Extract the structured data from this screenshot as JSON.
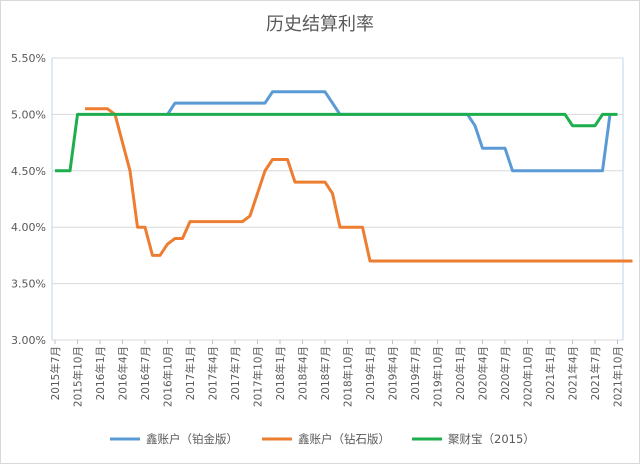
{
  "chart_data": {
    "type": "line",
    "title": "历史结算利率",
    "xlabel": "",
    "ylabel": "",
    "ylim": [
      3.0,
      5.5
    ],
    "yticks": [
      "3.00%",
      "3.50%",
      "4.00%",
      "4.50%",
      "5.00%",
      "5.50%"
    ],
    "ytick_values": [
      3.0,
      3.5,
      4.0,
      4.5,
      5.0,
      5.5
    ],
    "grid": "horizontal",
    "legend_position": "bottom",
    "x_start": "2015年7月",
    "x_end": "2021年10月",
    "x_step": "monthly",
    "xticks": [
      "2015年7月",
      "2015年10月",
      "2016年1月",
      "2016年4月",
      "2016年7月",
      "2016年10月",
      "2017年1月",
      "2017年4月",
      "2017年7月",
      "2017年10月",
      "2018年1月",
      "2018年4月",
      "2018年7月",
      "2018年10月",
      "2019年1月",
      "2019年4月",
      "2019年7月",
      "2019年10月",
      "2020年1月",
      "2020年4月",
      "2020年7月",
      "2020年10月",
      "2021年1月",
      "2021年4月",
      "2021年7月",
      "2021年10月"
    ],
    "series": [
      {
        "name": "鑫账户（铂金版）",
        "color": "#5B9BD5",
        "values": [
          null,
          null,
          null,
          null,
          null,
          null,
          null,
          null,
          null,
          null,
          null,
          null,
          null,
          null,
          null,
          5.0,
          5.1,
          5.1,
          5.1,
          5.1,
          5.1,
          5.1,
          5.1,
          5.1,
          5.1,
          5.1,
          5.1,
          5.1,
          5.1,
          5.2,
          5.2,
          5.2,
          5.2,
          5.2,
          5.2,
          5.2,
          5.2,
          5.1,
          5.0,
          5.0,
          5.0,
          5.0,
          5.0,
          5.0,
          5.0,
          5.0,
          5.0,
          5.0,
          5.0,
          5.0,
          5.0,
          5.0,
          5.0,
          5.0,
          5.0,
          5.0,
          4.9,
          4.7,
          4.7,
          4.7,
          4.7,
          4.5,
          4.5,
          4.5,
          4.5,
          4.5,
          4.5,
          4.5,
          4.5,
          4.5,
          4.5,
          4.5,
          4.5,
          4.5,
          5.0,
          null
        ]
      },
      {
        "name": "鑫账户（钻石版）",
        "color": "#ED7D31",
        "values": [
          null,
          null,
          null,
          null,
          5.05,
          5.05,
          5.05,
          5.05,
          5.0,
          4.75,
          4.5,
          4.0,
          4.0,
          3.75,
          3.75,
          3.85,
          3.9,
          3.9,
          4.05,
          4.05,
          4.05,
          4.05,
          4.05,
          4.05,
          4.05,
          4.05,
          4.1,
          4.3,
          4.5,
          4.6,
          4.6,
          4.6,
          4.4,
          4.4,
          4.4,
          4.4,
          4.4,
          4.3,
          4.0,
          4.0,
          4.0,
          4.0,
          3.7,
          3.7,
          3.7,
          3.7,
          3.7,
          3.7,
          3.7,
          3.7,
          3.7,
          3.7,
          3.7,
          3.7,
          3.7,
          3.7,
          3.7,
          3.7,
          3.7,
          3.7,
          3.7,
          3.7,
          3.7,
          3.7,
          3.7,
          3.7,
          3.7,
          3.7,
          3.7,
          3.7,
          3.7,
          3.7,
          3.7,
          3.7,
          3.7,
          3.7,
          3.7,
          3.7
        ]
      },
      {
        "name": "聚财宝（2015）",
        "color": "#1DAE4D",
        "values": [
          4.5,
          4.5,
          4.5,
          5.0,
          5.0,
          5.0,
          5.0,
          5.0,
          5.0,
          5.0,
          5.0,
          5.0,
          5.0,
          5.0,
          5.0,
          5.0,
          5.0,
          5.0,
          5.0,
          5.0,
          5.0,
          5.0,
          5.0,
          5.0,
          5.0,
          5.0,
          5.0,
          5.0,
          5.0,
          5.0,
          5.0,
          5.0,
          5.0,
          5.0,
          5.0,
          5.0,
          5.0,
          5.0,
          5.0,
          5.0,
          5.0,
          5.0,
          5.0,
          5.0,
          5.0,
          5.0,
          5.0,
          5.0,
          5.0,
          5.0,
          5.0,
          5.0,
          5.0,
          5.0,
          5.0,
          5.0,
          5.0,
          5.0,
          5.0,
          5.0,
          5.0,
          5.0,
          5.0,
          5.0,
          5.0,
          5.0,
          5.0,
          5.0,
          5.0,
          4.9,
          4.9,
          4.9,
          4.9,
          5.0,
          5.0,
          5.0
        ]
      }
    ]
  }
}
